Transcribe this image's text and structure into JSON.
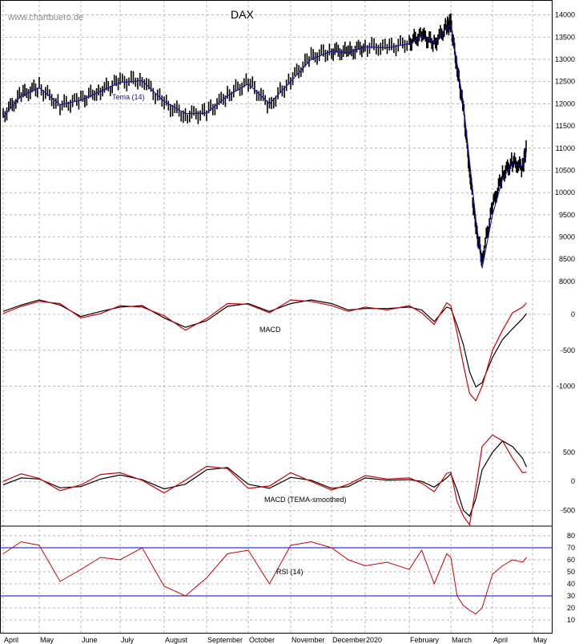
{
  "header": {
    "site": "www.chartbuero.de",
    "title": "DAX"
  },
  "colors": {
    "price": "#000000",
    "tema": "#1010b0",
    "macd": "#000000",
    "signal": "#d00000",
    "rsi": "#d00000",
    "rsi_levels": "#0000cc",
    "grid": "#9a9a9a"
  },
  "chart_data": [
    {
      "type": "line",
      "panel": "price",
      "title": "DAX",
      "series_label": "Tema (14)",
      "ylim": [
        7800,
        14300
      ],
      "yticks": [
        8000,
        8500,
        9000,
        9500,
        10000,
        10500,
        11000,
        11500,
        12000,
        12500,
        13000,
        13500,
        14000
      ],
      "months": [
        "April",
        "May",
        "June",
        "July",
        "August",
        "September",
        "October",
        "November",
        "December",
        "2020",
        "February",
        "March",
        "April",
        "May"
      ],
      "x": [
        0,
        0.5,
        1,
        1.5,
        2,
        2.5,
        3,
        3.5,
        4,
        4.5,
        5,
        5.5,
        6,
        6.5,
        7,
        7.5,
        8,
        8.5,
        9,
        9.5,
        10,
        10.3,
        10.6,
        10.9,
        11,
        11.15,
        11.3,
        11.45,
        11.6,
        11.75,
        12,
        12.25,
        12.5,
        12.75,
        12.85
      ],
      "values": [
        11750,
        12200,
        12380,
        11950,
        12100,
        12300,
        12500,
        12550,
        12000,
        11750,
        11800,
        12200,
        12500,
        11950,
        12550,
        13050,
        13200,
        13150,
        13300,
        13250,
        13380,
        13550,
        13350,
        13750,
        13800,
        12800,
        11900,
        10500,
        9200,
        8500,
        9700,
        10400,
        10700,
        10550,
        11050
      ],
      "tema": [
        11700,
        12180,
        12360,
        11980,
        12080,
        12280,
        12480,
        12520,
        12050,
        11780,
        11790,
        12180,
        12450,
        12000,
        12500,
        13000,
        13180,
        13150,
        13280,
        13260,
        13350,
        13520,
        13380,
        13700,
        13780,
        12900,
        12000,
        10700,
        9400,
        8300,
        9500,
        10300,
        10650,
        10600,
        11000
      ]
    },
    {
      "type": "line",
      "panel": "macd",
      "ylabel": "MACD",
      "ylim": [
        -1450,
        300
      ],
      "yticks": [
        0,
        -500,
        -1000
      ],
      "x": [
        0,
        0.5,
        1,
        1.5,
        2,
        2.5,
        3,
        3.5,
        4,
        4.5,
        5,
        5.5,
        6,
        6.5,
        7,
        7.5,
        8,
        8.5,
        9,
        9.5,
        10,
        10.3,
        10.6,
        10.9,
        11,
        11.15,
        11.3,
        11.45,
        11.6,
        11.75,
        12,
        12.25,
        12.5,
        12.75,
        12.85
      ],
      "macd": [
        40,
        130,
        200,
        130,
        -30,
        40,
        100,
        120,
        -50,
        -180,
        -90,
        110,
        150,
        40,
        150,
        200,
        150,
        60,
        80,
        80,
        100,
        60,
        -100,
        100,
        80,
        -150,
        -420,
        -800,
        -1010,
        -950,
        -600,
        -350,
        -200,
        -60,
        10
      ],
      "signal": [
        10,
        110,
        180,
        150,
        -50,
        10,
        120,
        100,
        -20,
        -220,
        -60,
        150,
        140,
        20,
        200,
        180,
        120,
        40,
        100,
        60,
        120,
        20,
        -140,
        160,
        120,
        -260,
        -700,
        -1100,
        -1200,
        -1000,
        -500,
        -220,
        20,
        100,
        160
      ]
    },
    {
      "type": "line",
      "panel": "macd-tema",
      "ylabel": "MACD (TEMA-smoothed)",
      "ylim": [
        -800,
        1000
      ],
      "yticks": [
        500,
        0,
        -500
      ],
      "x": [
        0,
        0.5,
        1,
        1.5,
        2,
        2.5,
        3,
        3.5,
        4,
        4.5,
        5,
        5.5,
        6,
        6.5,
        7,
        7.5,
        8,
        8.5,
        9,
        9.5,
        10,
        10.3,
        10.6,
        10.9,
        11,
        11.15,
        11.3,
        11.45,
        11.6,
        11.75,
        12,
        12.25,
        12.5,
        12.75,
        12.85
      ],
      "macd": [
        -60,
        60,
        40,
        -110,
        -90,
        40,
        110,
        30,
        -130,
        -50,
        200,
        240,
        -50,
        -120,
        70,
        20,
        -120,
        -90,
        60,
        20,
        30,
        0,
        -100,
        60,
        130,
        -150,
        -500,
        -600,
        -300,
        200,
        500,
        700,
        600,
        400,
        250
      ],
      "signal": [
        0,
        130,
        50,
        -160,
        -60,
        120,
        150,
        20,
        -200,
        20,
        260,
        220,
        -120,
        -80,
        150,
        0,
        -150,
        -50,
        100,
        40,
        60,
        -30,
        -180,
        140,
        160,
        -350,
        -600,
        -750,
        -100,
        600,
        800,
        700,
        400,
        150,
        160
      ]
    },
    {
      "type": "line",
      "panel": "rsi",
      "ylabel": "RSI (14)",
      "ylim": [
        0,
        88
      ],
      "yticks": [
        10,
        20,
        30,
        40,
        50,
        60,
        70,
        80
      ],
      "levels": [
        70,
        30
      ],
      "x": [
        0,
        0.5,
        1,
        1.5,
        2,
        2.5,
        3,
        3.5,
        4,
        4.5,
        5,
        5.5,
        6,
        6.5,
        7,
        7.5,
        8,
        8.5,
        9,
        9.5,
        10,
        10.3,
        10.6,
        10.9,
        11,
        11.15,
        11.3,
        11.45,
        11.6,
        11.75,
        12,
        12.25,
        12.5,
        12.75,
        12.85
      ],
      "values": [
        65,
        75,
        72,
        42,
        52,
        62,
        60,
        70,
        38,
        30,
        45,
        65,
        68,
        40,
        72,
        75,
        70,
        60,
        55,
        58,
        52,
        68,
        40,
        65,
        62,
        30,
        22,
        18,
        15,
        20,
        48,
        55,
        60,
        58,
        62
      ]
    }
  ]
}
